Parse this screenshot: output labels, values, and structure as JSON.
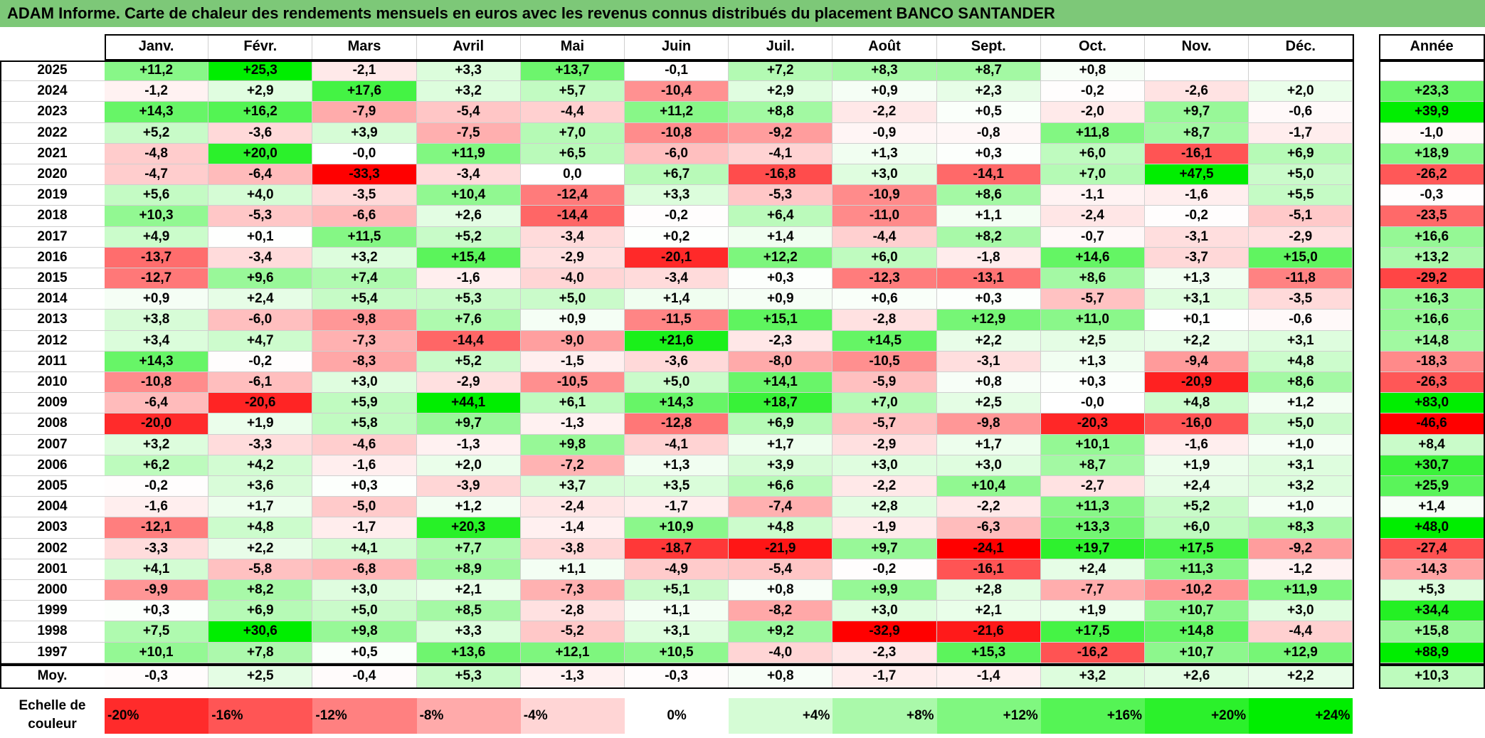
{
  "title": "ADAM Informe. Carte de chaleur des rendements mensuels en euros avec les revenus connus distribués du placement BANCO SANTANDER",
  "colors": {
    "title_bg": "#7dc878",
    "neg_max": "#ff0000",
    "pos_max": "#00ee00",
    "zero": "#ffffff"
  },
  "chart_data": {
    "type": "heatmap",
    "title": "ADAM Informe. Carte de chaleur des rendements mensuels en euros avec les revenus connus distribués du placement BANCO SANTANDER",
    "columns": [
      "Janv.",
      "Févr.",
      "Mars",
      "Avril",
      "Mai",
      "Juin",
      "Juil.",
      "Août",
      "Sept.",
      "Oct.",
      "Nov.",
      "Déc."
    ],
    "annual_header": "Année",
    "rows": [
      {
        "year": "2025",
        "values": [
          "+11,2",
          "+25,3",
          "-2,1",
          "+3,3",
          "+13,7",
          "-0,1",
          "+7,2",
          "+8,3",
          "+8,7",
          "+0,8",
          "",
          ""
        ],
        "annual": ""
      },
      {
        "year": "2024",
        "values": [
          "-1,2",
          "+2,9",
          "+17,6",
          "+3,2",
          "+5,7",
          "-10,4",
          "+2,9",
          "+0,9",
          "+2,3",
          "-0,2",
          "-2,6",
          "+2,0"
        ],
        "annual": "+23,3"
      },
      {
        "year": "2023",
        "values": [
          "+14,3",
          "+16,2",
          "-7,9",
          "-5,4",
          "-4,4",
          "+11,2",
          "+8,8",
          "-2,2",
          "+0,5",
          "-2,0",
          "+9,7",
          "-0,6"
        ],
        "annual": "+39,9"
      },
      {
        "year": "2022",
        "values": [
          "+5,2",
          "-3,6",
          "+3,9",
          "-7,5",
          "+7,0",
          "-10,8",
          "-9,2",
          "-0,9",
          "-0,8",
          "+11,8",
          "+8,7",
          "-1,7"
        ],
        "annual": "-1,0"
      },
      {
        "year": "2021",
        "values": [
          "-4,8",
          "+20,0",
          "-0,0",
          "+11,9",
          "+6,5",
          "-6,0",
          "-4,1",
          "+1,3",
          "+0,3",
          "+6,0",
          "-16,1",
          "+6,9"
        ],
        "annual": "+18,9"
      },
      {
        "year": "2020",
        "values": [
          "-4,7",
          "-6,4",
          "-33,3",
          "-3,4",
          "0,0",
          "+6,7",
          "-16,8",
          "+3,0",
          "-14,1",
          "+7,0",
          "+47,5",
          "+5,0"
        ],
        "annual": "-26,2"
      },
      {
        "year": "2019",
        "values": [
          "+5,6",
          "+4,0",
          "-3,5",
          "+10,4",
          "-12,4",
          "+3,3",
          "-5,3",
          "-10,9",
          "+8,6",
          "-1,1",
          "-1,6",
          "+5,5"
        ],
        "annual": "-0,3"
      },
      {
        "year": "2018",
        "values": [
          "+10,3",
          "-5,3",
          "-6,6",
          "+2,6",
          "-14,4",
          "-0,2",
          "+6,4",
          "-11,0",
          "+1,1",
          "-2,4",
          "-0,2",
          "-5,1"
        ],
        "annual": "-23,5"
      },
      {
        "year": "2017",
        "values": [
          "+4,9",
          "+0,1",
          "+11,5",
          "+5,2",
          "-3,4",
          "+0,2",
          "+1,4",
          "-4,4",
          "+8,2",
          "-0,7",
          "-3,1",
          "-2,9"
        ],
        "annual": "+16,6"
      },
      {
        "year": "2016",
        "values": [
          "-13,7",
          "-3,4",
          "+3,2",
          "+15,4",
          "-2,9",
          "-20,1",
          "+12,2",
          "+6,0",
          "-1,8",
          "+14,6",
          "-3,7",
          "+15,0"
        ],
        "annual": "+13,2"
      },
      {
        "year": "2015",
        "values": [
          "-12,7",
          "+9,6",
          "+7,4",
          "-1,6",
          "-4,0",
          "-3,4",
          "+0,3",
          "-12,3",
          "-13,1",
          "+8,6",
          "+1,3",
          "-11,8"
        ],
        "annual": "-29,2"
      },
      {
        "year": "2014",
        "values": [
          "+0,9",
          "+2,4",
          "+5,4",
          "+5,3",
          "+5,0",
          "+1,4",
          "+0,9",
          "+0,6",
          "+0,3",
          "-5,7",
          "+3,1",
          "-3,5"
        ],
        "annual": "+16,3"
      },
      {
        "year": "2013",
        "values": [
          "+3,8",
          "-6,0",
          "-9,8",
          "+7,6",
          "+0,9",
          "-11,5",
          "+15,1",
          "-2,8",
          "+12,9",
          "+11,0",
          "+0,1",
          "-0,6"
        ],
        "annual": "+16,6"
      },
      {
        "year": "2012",
        "values": [
          "+3,4",
          "+4,7",
          "-7,3",
          "-14,4",
          "-9,0",
          "+21,6",
          "-2,3",
          "+14,5",
          "+2,2",
          "+2,5",
          "+2,2",
          "+3,1"
        ],
        "annual": "+14,8"
      },
      {
        "year": "2011",
        "values": [
          "+14,3",
          "-0,2",
          "-8,3",
          "+5,2",
          "-1,5",
          "-3,6",
          "-8,0",
          "-10,5",
          "-3,1",
          "+1,3",
          "-9,4",
          "+4,8"
        ],
        "annual": "-18,3"
      },
      {
        "year": "2010",
        "values": [
          "-10,8",
          "-6,1",
          "+3,0",
          "-2,9",
          "-10,5",
          "+5,0",
          "+14,1",
          "-5,9",
          "+0,8",
          "+0,3",
          "-20,9",
          "+8,6"
        ],
        "annual": "-26,3"
      },
      {
        "year": "2009",
        "values": [
          "-6,4",
          "-20,6",
          "+5,9",
          "+44,1",
          "+6,1",
          "+14,3",
          "+18,7",
          "+7,0",
          "+2,5",
          "-0,0",
          "+4,8",
          "+1,2"
        ],
        "annual": "+83,0"
      },
      {
        "year": "2008",
        "values": [
          "-20,0",
          "+1,9",
          "+5,8",
          "+9,7",
          "-1,3",
          "-12,8",
          "+6,9",
          "-5,7",
          "-9,8",
          "-20,3",
          "-16,0",
          "+5,0"
        ],
        "annual": "-46,6"
      },
      {
        "year": "2007",
        "values": [
          "+3,2",
          "-3,3",
          "-4,6",
          "-1,3",
          "+9,8",
          "-4,1",
          "+1,7",
          "-2,9",
          "+1,7",
          "+10,1",
          "-1,6",
          "+1,0"
        ],
        "annual": "+8,4"
      },
      {
        "year": "2006",
        "values": [
          "+6,2",
          "+4,2",
          "-1,6",
          "+2,0",
          "-7,2",
          "+1,3",
          "+3,9",
          "+3,0",
          "+3,0",
          "+8,7",
          "+1,9",
          "+3,1"
        ],
        "annual": "+30,7"
      },
      {
        "year": "2005",
        "values": [
          "-0,2",
          "+3,6",
          "+0,3",
          "-3,9",
          "+3,7",
          "+3,5",
          "+6,6",
          "-2,2",
          "+10,4",
          "-2,7",
          "+2,4",
          "+3,2"
        ],
        "annual": "+25,9"
      },
      {
        "year": "2004",
        "values": [
          "-1,6",
          "+1,7",
          "-5,0",
          "+1,2",
          "-2,4",
          "-1,7",
          "-7,4",
          "+2,8",
          "-2,2",
          "+11,3",
          "+5,2",
          "+1,0"
        ],
        "annual": "+1,4"
      },
      {
        "year": "2003",
        "values": [
          "-12,1",
          "+4,8",
          "-1,7",
          "+20,3",
          "-1,4",
          "+10,9",
          "+4,8",
          "-1,9",
          "-6,3",
          "+13,3",
          "+6,0",
          "+8,3"
        ],
        "annual": "+48,0"
      },
      {
        "year": "2002",
        "values": [
          "-3,3",
          "+2,2",
          "+4,1",
          "+7,7",
          "-3,8",
          "-18,7",
          "-21,9",
          "+9,7",
          "-24,1",
          "+19,7",
          "+17,5",
          "-9,2"
        ],
        "annual": "-27,4"
      },
      {
        "year": "2001",
        "values": [
          "+4,1",
          "-5,8",
          "-6,8",
          "+8,9",
          "+1,1",
          "-4,9",
          "-5,4",
          "-0,2",
          "-16,1",
          "+2,4",
          "+11,3",
          "-1,2"
        ],
        "annual": "-14,3"
      },
      {
        "year": "2000",
        "values": [
          "-9,9",
          "+8,2",
          "+3,0",
          "+2,1",
          "-7,3",
          "+5,1",
          "+0,8",
          "+9,9",
          "+2,8",
          "-7,7",
          "-10,2",
          "+11,9"
        ],
        "annual": "+5,3"
      },
      {
        "year": "1999",
        "values": [
          "+0,3",
          "+6,9",
          "+5,0",
          "+8,5",
          "-2,8",
          "+1,1",
          "-8,2",
          "+3,0",
          "+2,1",
          "+1,9",
          "+10,7",
          "+3,0"
        ],
        "annual": "+34,4"
      },
      {
        "year": "1998",
        "values": [
          "+7,5",
          "+30,6",
          "+9,8",
          "+3,3",
          "-5,2",
          "+3,1",
          "+9,2",
          "-32,9",
          "-21,6",
          "+17,5",
          "+14,8",
          "-4,4"
        ],
        "annual": "+15,8"
      },
      {
        "year": "1997",
        "values": [
          "+10,1",
          "+7,8",
          "+0,5",
          "+13,6",
          "+12,1",
          "+10,5",
          "-4,0",
          "-2,3",
          "+15,3",
          "-16,2",
          "+10,7",
          "+12,9"
        ],
        "annual": "+88,9"
      }
    ],
    "average": {
      "label": "Moy.",
      "values": [
        "-0,3",
        "+2,5",
        "-0,4",
        "+5,3",
        "-1,3",
        "-0,3",
        "+0,8",
        "-1,7",
        "-1,4",
        "+3,2",
        "+2,6",
        "+2,2"
      ],
      "annual": "+10,3"
    },
    "scale": {
      "label": "Echelle de couleur",
      "steps": [
        "-20%",
        "-16%",
        "-12%",
        "-8%",
        "-4%",
        "0%",
        "+4%",
        "+8%",
        "+12%",
        "+16%",
        "+20%",
        "+24%"
      ]
    }
  }
}
